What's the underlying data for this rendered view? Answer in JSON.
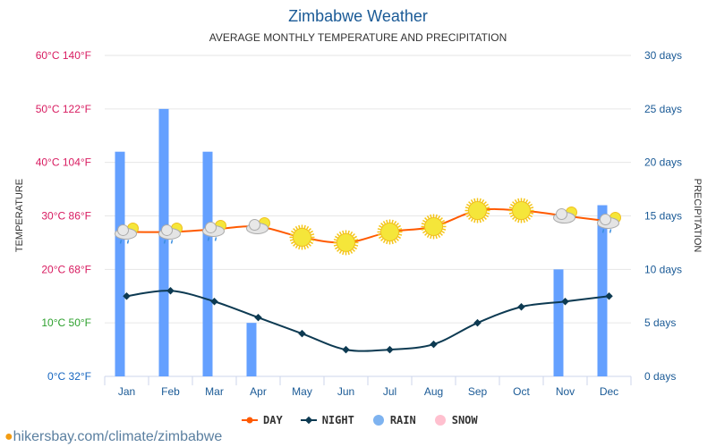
{
  "chart_data": {
    "type": "line",
    "title": "Zimbabwe Weather",
    "subtitle": "AVERAGE MONTHLY TEMPERATURE AND PRECIPITATION",
    "ylabel_left": "TEMPERATURE",
    "ylabel_right": "PRECIPITATION",
    "categories": [
      "Jan",
      "Feb",
      "Mar",
      "Apr",
      "May",
      "Jun",
      "Jul",
      "Aug",
      "Sep",
      "Oct",
      "Nov",
      "Dec"
    ],
    "left_ticks": [
      {
        "c": 0,
        "label": "0°C 32°F",
        "color": "#1565c0"
      },
      {
        "c": 10,
        "label": "10°C 50°F",
        "color": "#2ca02c"
      },
      {
        "c": 20,
        "label": "20°C 68°F",
        "color": "#d81b60"
      },
      {
        "c": 30,
        "label": "30°C 86°F",
        "color": "#d81b60"
      },
      {
        "c": 40,
        "label": "40°C 104°F",
        "color": "#d81b60"
      },
      {
        "c": 50,
        "label": "50°C 122°F",
        "color": "#d81b60"
      },
      {
        "c": 60,
        "label": "60°C 140°F",
        "color": "#d81b60"
      }
    ],
    "right_ticks": [
      "0 days",
      "5 days",
      "10 days",
      "15 days",
      "20 days",
      "25 days",
      "30 days"
    ],
    "ylim_left": [
      0,
      60
    ],
    "ylim_right": [
      0,
      30
    ],
    "grid": true,
    "legend_position": "bottom",
    "series": [
      {
        "name": "DAY",
        "type": "line",
        "color": "#ff5a00",
        "values": [
          27,
          27,
          27.5,
          28,
          26,
          25,
          27,
          28,
          31,
          31,
          30,
          29
        ]
      },
      {
        "name": "NIGHT",
        "type": "line",
        "color": "#0d3a52",
        "values": [
          15,
          16,
          14,
          11,
          8,
          5,
          5,
          6,
          10,
          13,
          14,
          15
        ]
      },
      {
        "name": "RAIN",
        "type": "bar",
        "color": "#64a0ff",
        "values": [
          21,
          25,
          21,
          5,
          0,
          0,
          0,
          0,
          0,
          0,
          10,
          16
        ]
      },
      {
        "name": "SNOW",
        "type": "bar",
        "color": "#ffb6c8",
        "values": [
          0,
          0,
          0,
          0,
          0,
          0,
          0,
          0,
          0,
          0,
          0,
          0
        ]
      }
    ],
    "weather_icons": [
      "rain-cloud-sun",
      "rain-cloud-sun",
      "rain-cloud-sun",
      "partly-cloudy",
      "sun",
      "sun",
      "sun",
      "sun",
      "sun",
      "sun",
      "partly-cloudy",
      "rain-cloud-sun"
    ]
  },
  "footer": "hikersbay.com/climate/zimbabwe"
}
